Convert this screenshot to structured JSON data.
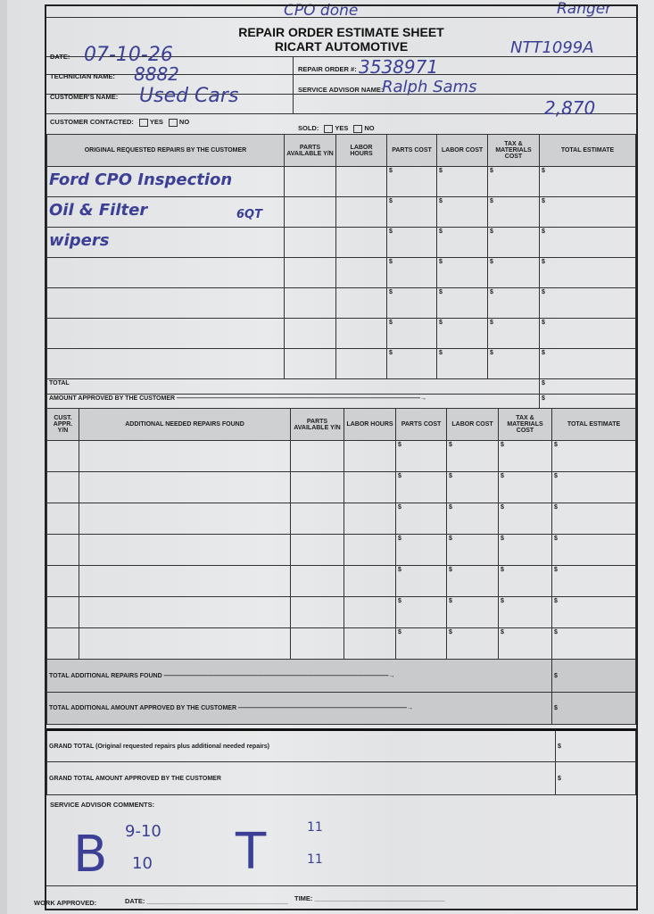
{
  "handwritten_top": {
    "left_note": "CPO done",
    "right_note": "Ranger",
    "stock_number": "NTT1099A",
    "mileage": "2,870"
  },
  "header": {
    "title": "REPAIR ORDER ESTIMATE SHEET",
    "company": "RICART AUTOMOTIVE"
  },
  "fields": {
    "date": {
      "label": "DATE:",
      "value": "07-10-26"
    },
    "technician": {
      "label": "TECHNICIAN NAME:",
      "value": "8882"
    },
    "customer": {
      "label": "CUSTOMER'S NAME:",
      "value": "Used Cars"
    },
    "repair_order": {
      "label": "REPAIR ORDER #:",
      "value": "3538971"
    },
    "service_advisor": {
      "label": "SERVICE ADVISOR NAME:",
      "value": "Ralph Sams"
    },
    "customer_contacted": {
      "label": "CUSTOMER CONTACTED:",
      "yes": "YES",
      "no": "NO"
    },
    "sold": {
      "label": "SOLD:",
      "yes": "YES",
      "no": "NO"
    }
  },
  "original_table": {
    "columns": [
      "ORIGINAL REQUESTED REPAIRS BY THE CUSTOMER",
      "PARTS AVAILABLE Y/N",
      "LABOR HOURS",
      "PARTS COST",
      "LABOR COST",
      "TAX & MATERIALS COST",
      "TOTAL ESTIMATE"
    ],
    "rows": [
      {
        "desc": "Ford CPO Inspection",
        "note": ""
      },
      {
        "desc": "Oil & Filter",
        "note": "6QT"
      },
      {
        "desc": "wipers",
        "note": ""
      },
      {
        "desc": "",
        "note": ""
      },
      {
        "desc": "",
        "note": ""
      },
      {
        "desc": "",
        "note": ""
      },
      {
        "desc": "",
        "note": ""
      }
    ],
    "currency": "$",
    "total_label": "TOTAL",
    "approved_label": "AMOUNT APPROVED BY THE CUSTOMER"
  },
  "additional_table": {
    "columns": [
      "CUST. APPR. Y/N",
      "ADDITIONAL NEEDED REPAIRS FOUND",
      "PARTS AVAILABLE Y/N",
      "LABOR HOURS",
      "PARTS COST",
      "LABOR COST",
      "TAX & MATERIALS COST",
      "TOTAL ESTIMATE"
    ],
    "row_count_note": "7 blank rows",
    "total_label": "TOTAL ADDITIONAL REPAIRS FOUND",
    "approved_label": "TOTAL ADDITIONAL AMOUNT APPROVED BY THE CUSTOMER"
  },
  "grand_total_label": "GRAND TOTAL (Original requested repairs plus additional needed repairs)",
  "grand_approved_label": "GRAND TOTAL AMOUNT APPROVED BY THE CUSTOMER",
  "comments": {
    "label": "SERVICE ADVISOR COMMENTS:",
    "big_b": "B",
    "b_top": "9-10",
    "b_bottom": "10",
    "big_t": "T",
    "t_top": "11",
    "t_bottom": "11"
  },
  "footer": {
    "work_approved": "WORK APPROVED:",
    "date": "DATE:",
    "time": "TIME:"
  }
}
